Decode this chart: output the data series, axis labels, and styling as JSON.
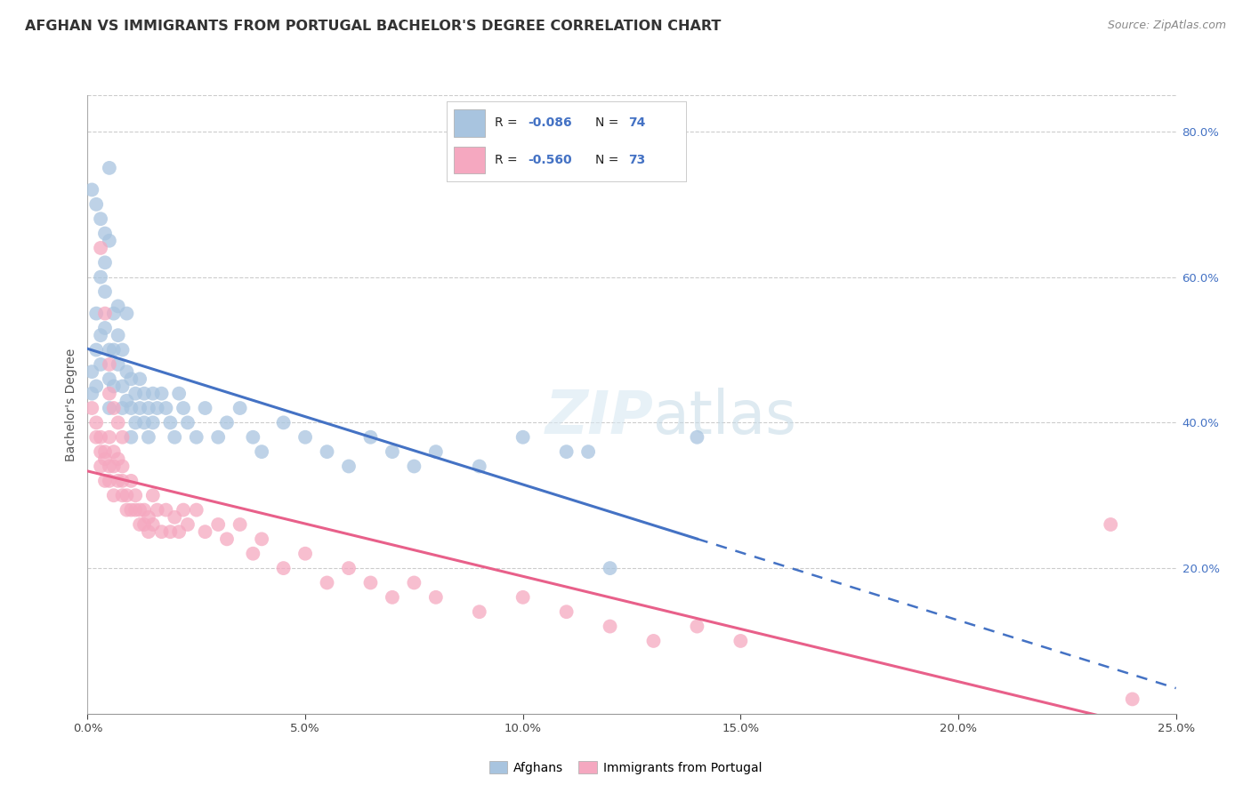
{
  "title": "AFGHAN VS IMMIGRANTS FROM PORTUGAL BACHELOR'S DEGREE CORRELATION CHART",
  "source": "Source: ZipAtlas.com",
  "ylabel": "Bachelor's Degree",
  "legend_r1": "-0.086",
  "legend_n1": "74",
  "legend_r2": "-0.560",
  "legend_n2": "73",
  "legend_label1": "Afghans",
  "legend_label2": "Immigrants from Portugal",
  "watermark_zip": "ZIP",
  "watermark_atlas": "atlas",
  "blue_scatter_color": "#a8c4df",
  "pink_scatter_color": "#f5a8c0",
  "blue_line_color": "#4472c4",
  "pink_line_color": "#e8608a",
  "title_fontsize": 12,
  "axis_fontsize": 10,
  "xmin": 0.0,
  "xmax": 0.25,
  "ymin": 0.0,
  "ymax": 0.85,
  "afghans_x": [
    0.001,
    0.001,
    0.002,
    0.002,
    0.002,
    0.003,
    0.003,
    0.003,
    0.004,
    0.004,
    0.004,
    0.005,
    0.005,
    0.005,
    0.005,
    0.006,
    0.006,
    0.006,
    0.007,
    0.007,
    0.007,
    0.008,
    0.008,
    0.008,
    0.009,
    0.009,
    0.009,
    0.01,
    0.01,
    0.01,
    0.011,
    0.011,
    0.012,
    0.012,
    0.013,
    0.013,
    0.014,
    0.014,
    0.015,
    0.015,
    0.016,
    0.017,
    0.018,
    0.019,
    0.02,
    0.021,
    0.022,
    0.023,
    0.025,
    0.027,
    0.03,
    0.032,
    0.035,
    0.038,
    0.04,
    0.045,
    0.05,
    0.055,
    0.06,
    0.065,
    0.07,
    0.075,
    0.08,
    0.09,
    0.1,
    0.11,
    0.12,
    0.14,
    0.001,
    0.002,
    0.003,
    0.004,
    0.005,
    0.115
  ],
  "afghans_y": [
    0.44,
    0.47,
    0.5,
    0.45,
    0.55,
    0.52,
    0.48,
    0.6,
    0.58,
    0.53,
    0.62,
    0.5,
    0.46,
    0.42,
    0.65,
    0.55,
    0.5,
    0.45,
    0.52,
    0.48,
    0.56,
    0.45,
    0.42,
    0.5,
    0.55,
    0.47,
    0.43,
    0.46,
    0.42,
    0.38,
    0.44,
    0.4,
    0.46,
    0.42,
    0.44,
    0.4,
    0.42,
    0.38,
    0.44,
    0.4,
    0.42,
    0.44,
    0.42,
    0.4,
    0.38,
    0.44,
    0.42,
    0.4,
    0.38,
    0.42,
    0.38,
    0.4,
    0.42,
    0.38,
    0.36,
    0.4,
    0.38,
    0.36,
    0.34,
    0.38,
    0.36,
    0.34,
    0.36,
    0.34,
    0.38,
    0.36,
    0.2,
    0.38,
    0.72,
    0.7,
    0.68,
    0.66,
    0.75,
    0.36
  ],
  "portugal_x": [
    0.001,
    0.002,
    0.002,
    0.003,
    0.003,
    0.003,
    0.004,
    0.004,
    0.004,
    0.005,
    0.005,
    0.005,
    0.006,
    0.006,
    0.006,
    0.007,
    0.007,
    0.008,
    0.008,
    0.008,
    0.009,
    0.009,
    0.01,
    0.01,
    0.011,
    0.011,
    0.012,
    0.012,
    0.013,
    0.013,
    0.014,
    0.014,
    0.015,
    0.015,
    0.016,
    0.017,
    0.018,
    0.019,
    0.02,
    0.021,
    0.022,
    0.023,
    0.025,
    0.027,
    0.03,
    0.032,
    0.035,
    0.038,
    0.04,
    0.045,
    0.05,
    0.055,
    0.06,
    0.065,
    0.07,
    0.075,
    0.08,
    0.09,
    0.1,
    0.11,
    0.12,
    0.13,
    0.14,
    0.15,
    0.003,
    0.004,
    0.005,
    0.005,
    0.006,
    0.007,
    0.008,
    0.235,
    0.24
  ],
  "portugal_y": [
    0.42,
    0.38,
    0.4,
    0.36,
    0.34,
    0.38,
    0.35,
    0.32,
    0.36,
    0.34,
    0.38,
    0.32,
    0.36,
    0.34,
    0.3,
    0.35,
    0.32,
    0.34,
    0.3,
    0.32,
    0.28,
    0.3,
    0.32,
    0.28,
    0.3,
    0.28,
    0.28,
    0.26,
    0.28,
    0.26,
    0.27,
    0.25,
    0.3,
    0.26,
    0.28,
    0.25,
    0.28,
    0.25,
    0.27,
    0.25,
    0.28,
    0.26,
    0.28,
    0.25,
    0.26,
    0.24,
    0.26,
    0.22,
    0.24,
    0.2,
    0.22,
    0.18,
    0.2,
    0.18,
    0.16,
    0.18,
    0.16,
    0.14,
    0.16,
    0.14,
    0.12,
    0.1,
    0.12,
    0.1,
    0.64,
    0.55,
    0.48,
    0.44,
    0.42,
    0.4,
    0.38,
    0.26,
    0.02
  ]
}
